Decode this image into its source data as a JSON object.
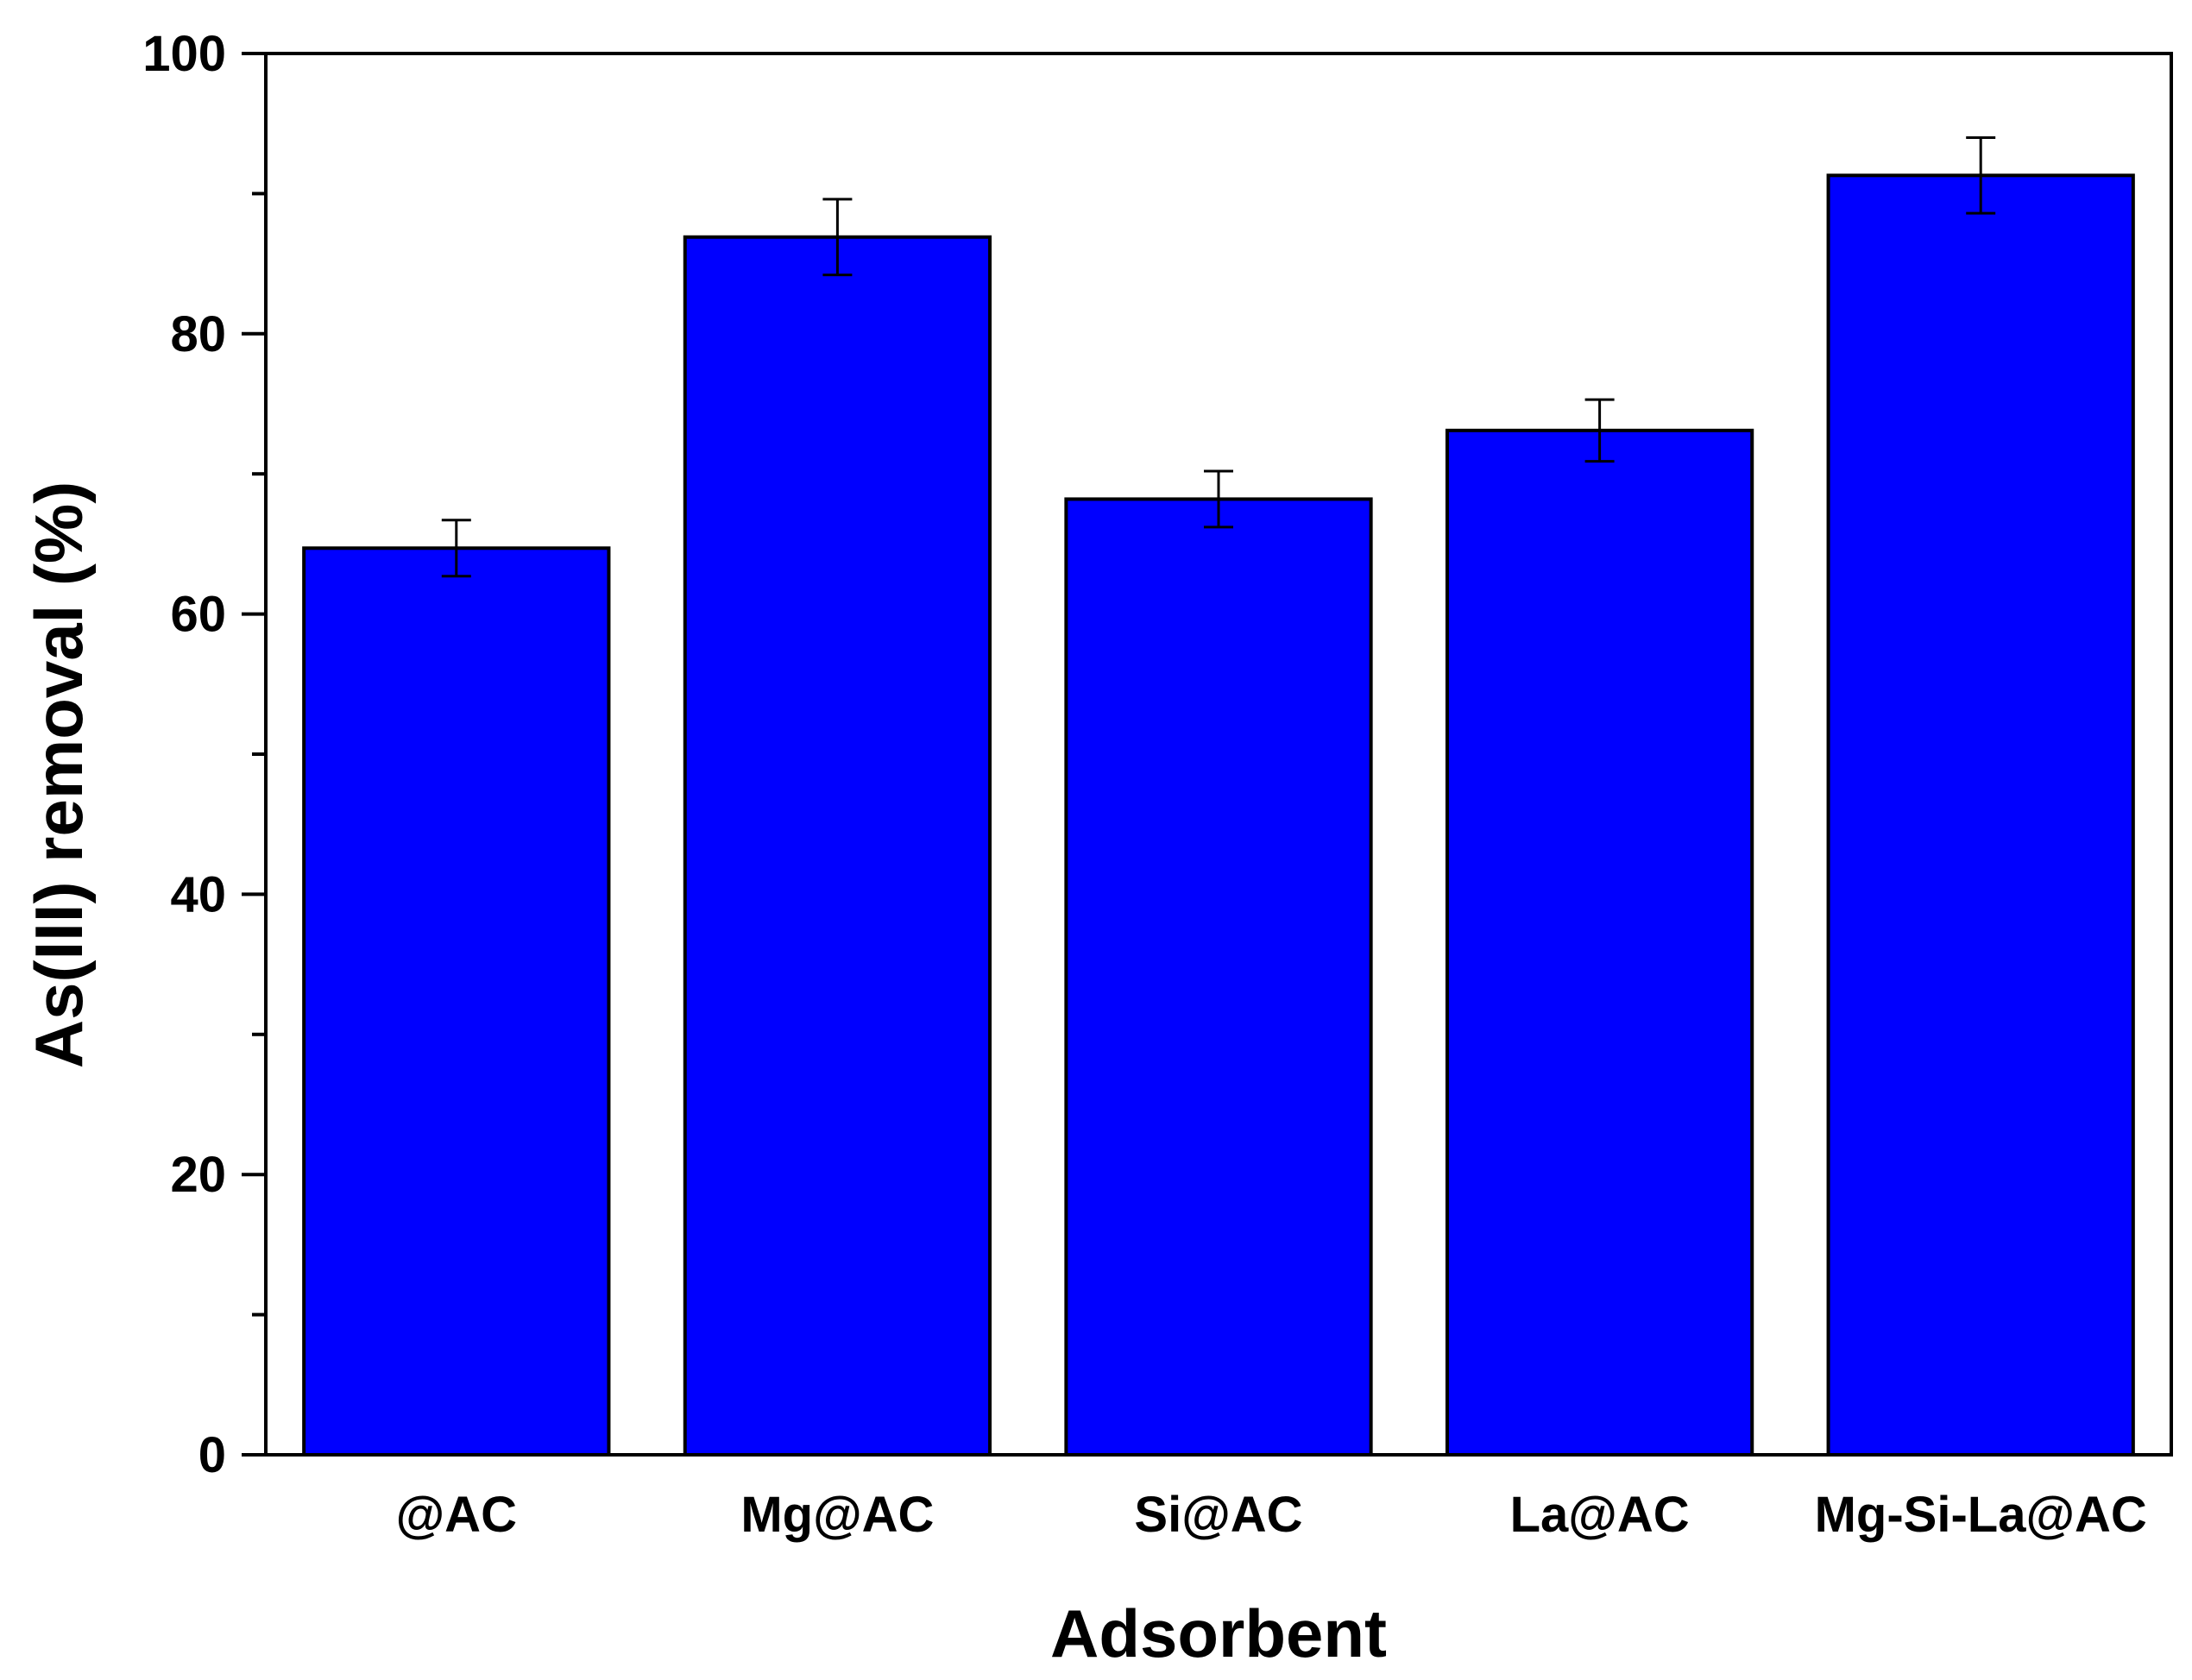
{
  "chart_data": {
    "type": "bar",
    "title": "",
    "xlabel": "Adsorbent",
    "ylabel": "As(III) removal (%)",
    "categories": [
      "@AC",
      "Mg@AC",
      "Si@AC",
      "La@AC",
      "Mg-Si-La@AC"
    ],
    "values": [
      64.7,
      86.9,
      68.2,
      73.1,
      91.3
    ],
    "errors": [
      2.0,
      2.7,
      2.0,
      2.2,
      2.7
    ],
    "ylim": [
      0,
      100
    ],
    "yticks": [
      0,
      20,
      40,
      60,
      80,
      100
    ],
    "yminor_step": 10,
    "grid": false,
    "bar_color": "#0000ff",
    "edge_color": "#000000"
  }
}
